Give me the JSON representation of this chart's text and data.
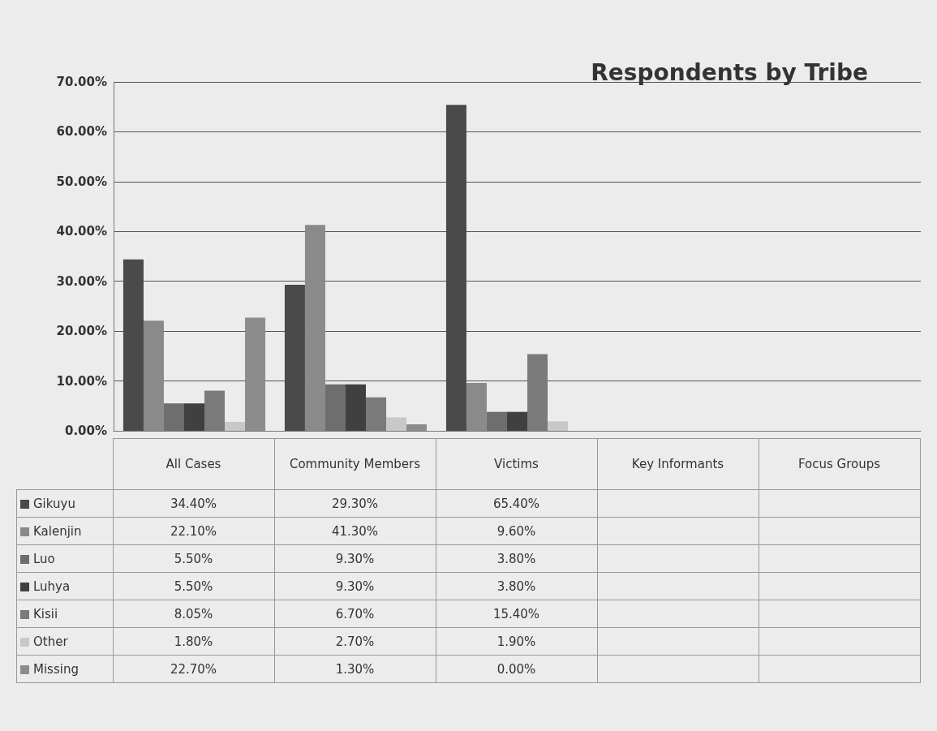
{
  "chart_data": {
    "type": "bar",
    "title": "Respondents by Tribe",
    "categories": [
      "All Cases",
      "Community Members",
      "Victims",
      "Key Informants",
      "Focus Groups"
    ],
    "series": [
      {
        "name": "Gikuyu",
        "color": "#4a4a4a",
        "values": [
          34.4,
          29.3,
          65.4,
          null,
          null
        ],
        "value_labels": [
          "34.40%",
          "29.30%",
          "65.40%",
          null,
          null
        ]
      },
      {
        "name": "Kalenjin",
        "color": "#8a8a8a",
        "values": [
          22.1,
          41.3,
          9.6,
          null,
          null
        ],
        "value_labels": [
          "22.10%",
          "41.30%",
          "9.60%",
          null,
          null
        ]
      },
      {
        "name": "Luo",
        "color": "#6e6e6e",
        "values": [
          5.5,
          9.3,
          3.8,
          null,
          null
        ],
        "value_labels": [
          "5.50%",
          "9.30%",
          "3.80%",
          null,
          null
        ]
      },
      {
        "name": "Luhya",
        "color": "#404040",
        "values": [
          5.5,
          9.3,
          3.8,
          null,
          null
        ],
        "value_labels": [
          "5.50%",
          "9.30%",
          "3.80%",
          null,
          null
        ]
      },
      {
        "name": "Kisii",
        "color": "#7a7a7a",
        "values": [
          8.05,
          6.7,
          15.4,
          null,
          null
        ],
        "value_labels": [
          "8.05%",
          "6.70%",
          "15.40%",
          null,
          null
        ]
      },
      {
        "name": "Other",
        "color": "#c8c8c8",
        "values": [
          1.8,
          2.7,
          1.9,
          null,
          null
        ],
        "value_labels": [
          "1.80%",
          "2.70%",
          "1.90%",
          null,
          null
        ]
      },
      {
        "name": "Missing",
        "color": "#8c8c8c",
        "values": [
          22.7,
          1.3,
          0.0,
          null,
          null
        ],
        "value_labels": [
          "22.70%",
          "1.30%",
          "0.00%",
          null,
          null
        ]
      }
    ],
    "ylim": [
      0,
      70
    ],
    "yticks": [
      {
        "value": 0,
        "label": "0.00%"
      },
      {
        "value": 10,
        "label": "10.00%"
      },
      {
        "value": 20,
        "label": "20.00%"
      },
      {
        "value": 30,
        "label": "30.00%"
      },
      {
        "value": 40,
        "label": "40.00%"
      },
      {
        "value": 50,
        "label": "50.00%"
      },
      {
        "value": 60,
        "label": "60.00%"
      },
      {
        "value": 70,
        "label": "70.00%"
      }
    ],
    "grid": "y",
    "legend": "bottom"
  }
}
